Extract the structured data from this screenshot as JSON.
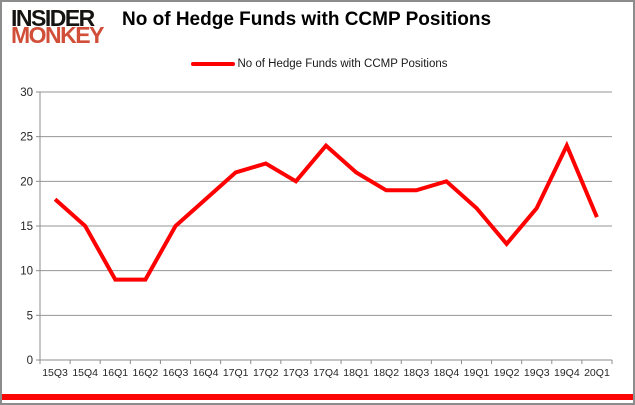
{
  "header": {
    "logo_line1": "INSIDER",
    "logo_line2": "MONKEY",
    "title": "No of Hedge Funds with CCMP Positions"
  },
  "legend": {
    "label": "No of Hedge Funds with CCMP Positions"
  },
  "chart_data": {
    "type": "line",
    "title": "No of Hedge Funds with CCMP Positions",
    "categories": [
      "15Q3",
      "15Q4",
      "16Q1",
      "16Q2",
      "16Q3",
      "16Q4",
      "17Q1",
      "17Q2",
      "17Q3",
      "17Q4",
      "18Q1",
      "18Q2",
      "18Q3",
      "18Q4",
      "19Q1",
      "19Q2",
      "19Q3",
      "19Q4",
      "20Q1"
    ],
    "series": [
      {
        "name": "No of Hedge Funds with CCMP Positions",
        "values": [
          18,
          15,
          9,
          9,
          15,
          18,
          21,
          22,
          20,
          24,
          21,
          19,
          19,
          20,
          17,
          13,
          17,
          24,
          16
        ]
      }
    ],
    "xlabel": "",
    "ylabel": "",
    "ylim": [
      0,
      30
    ],
    "yticks": [
      0,
      5,
      10,
      15,
      20,
      25,
      30
    ],
    "grid": true,
    "legend_position": "top-center"
  },
  "colors": {
    "line": "#ff0000",
    "legend_swatch": "#ff0000",
    "grid": "#969696",
    "axis": "#8c8c8c",
    "tick_label": "#262626",
    "accent_bar": "#fb0505",
    "logo_monkey": "#d14f38",
    "frame_border": "#8c8c8c"
  }
}
